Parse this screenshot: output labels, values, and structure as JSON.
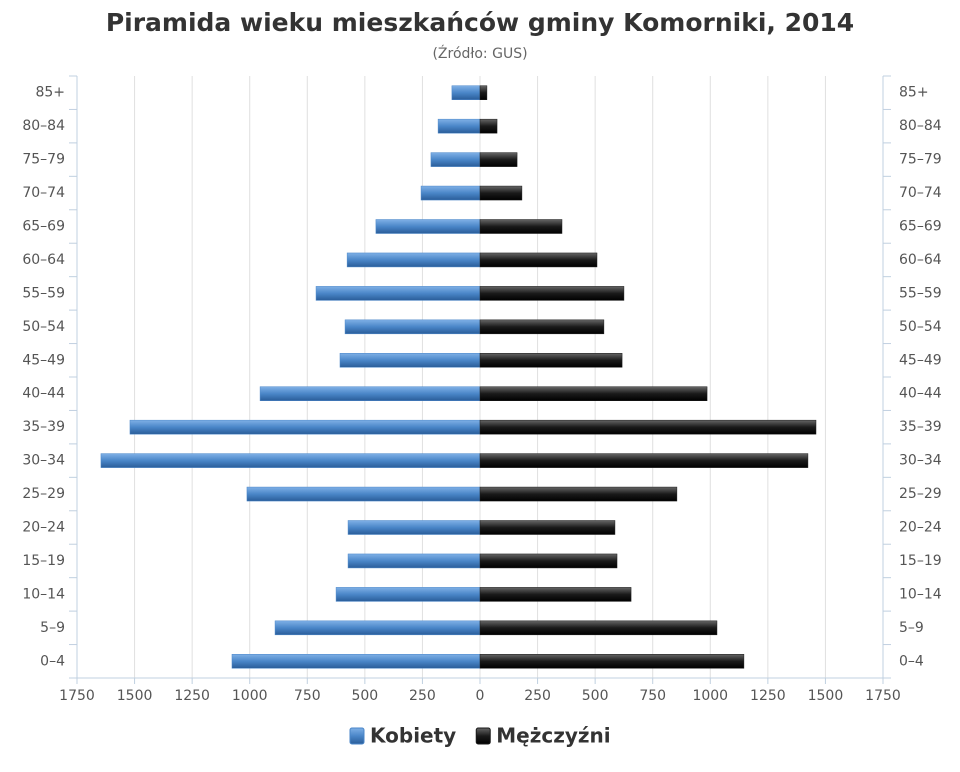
{
  "chart_data": {
    "type": "bar",
    "orientation": "horizontal",
    "title": "Piramida wieku mieszkańców gminy Komorniki, 2014",
    "subtitle": "(Źródło: GUS)",
    "categories": [
      "0–4",
      "5–9",
      "10–14",
      "15–19",
      "20–24",
      "25–29",
      "30–34",
      "35–39",
      "40–44",
      "45–49",
      "50–54",
      "55–59",
      "60–64",
      "65–69",
      "70–74",
      "75–79",
      "80–84",
      "85+"
    ],
    "series": [
      {
        "name": "Kobiety",
        "color": "#4a86c8",
        "values": [
          -1077,
          -890,
          -625,
          -573,
          -573,
          -1012,
          -1646,
          -1520,
          -955,
          -608,
          -586,
          -712,
          -577,
          -452,
          -256,
          -213,
          -182,
          -122
        ]
      },
      {
        "name": "Mężczyźni",
        "color": "#1a1a1a",
        "values": [
          1146,
          1029,
          656,
          595,
          586,
          855,
          1424,
          1459,
          986,
          617,
          538,
          625,
          508,
          356,
          182,
          161,
          74,
          30
        ]
      }
    ],
    "xlim": [
      -1750,
      1750
    ],
    "xticks": [
      {
        "value": -1750,
        "label": "1750"
      },
      {
        "value": -1500,
        "label": "1500"
      },
      {
        "value": -1250,
        "label": "1250"
      },
      {
        "value": -1000,
        "label": "1000"
      },
      {
        "value": -750,
        "label": "750"
      },
      {
        "value": -500,
        "label": "500"
      },
      {
        "value": -250,
        "label": "250"
      },
      0,
      250,
      500,
      750,
      1000,
      1250,
      1500,
      1750
    ],
    "grid": true
  }
}
